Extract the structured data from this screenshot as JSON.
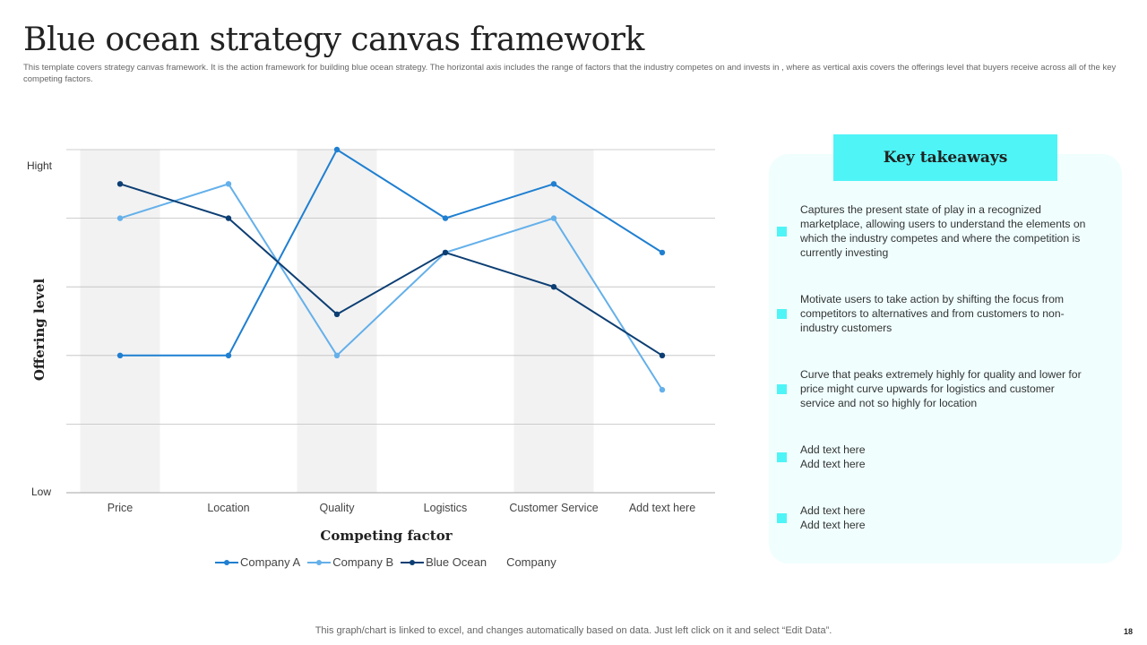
{
  "slide": {
    "title": "Blue ocean strategy canvas framework",
    "subtitle": "This template covers strategy canvas framework. It is the action framework for building blue ocean strategy. The horizontal axis includes the range of factors that the industry competes on and invests in , where as vertical axis covers the offerings level that buyers receive across all of the key competing factors.",
    "footer": "This graph/chart is linked to excel, and changes automatically based on data. Just left click on it and select “Edit Data”.",
    "page_number": "18"
  },
  "colors": {
    "company_a": "#1f7fd1",
    "company_b": "#64b0ea",
    "blue_ocean": "#0c3e73",
    "band": "#f2f2f2",
    "grid": "#bfbfbf",
    "accent": "#4ff4f6",
    "panel": "#f0fefe"
  },
  "chart_data": {
    "type": "line",
    "categories": [
      "Price",
      "Location",
      "Quality",
      "Logistics",
      "Customer Service",
      "Add text here"
    ],
    "series": [
      {
        "name": "Company A",
        "values": [
          1,
          1,
          4,
          3,
          3.5,
          2.5
        ]
      },
      {
        "name": "Company B",
        "values": [
          3,
          3.5,
          1,
          2.5,
          3,
          0.5
        ]
      },
      {
        "name": "Blue Ocean",
        "values": [
          3.5,
          3,
          1.6,
          2.5,
          2,
          1
        ]
      }
    ],
    "legend_extra": "Company",
    "ylim": [
      -1,
      4
    ],
    "ytick_labels": {
      "top": "Hight",
      "bottom": "Low"
    },
    "xlabel": "Competing factor",
    "ylabel": "Offering level",
    "grid": true,
    "legend_position": "bottom"
  },
  "takeaways": {
    "header": "Key takeaways",
    "items": [
      "Captures the present state of play in a recognized\nmarketplace, allowing users to understand the elements on\nwhich the industry competes and where the competition is\ncurrently investing",
      "Motivate users to take action by shifting the focus from\ncompetitors to alternatives and from customers to non-\nindustry customers",
      "Curve that peaks extremely highly for quality and lower for\nprice might curve upwards for logistics and customer\nservice and not so highly for location",
      "Add text here\nAdd text here",
      "Add text here\nAdd text here"
    ]
  }
}
